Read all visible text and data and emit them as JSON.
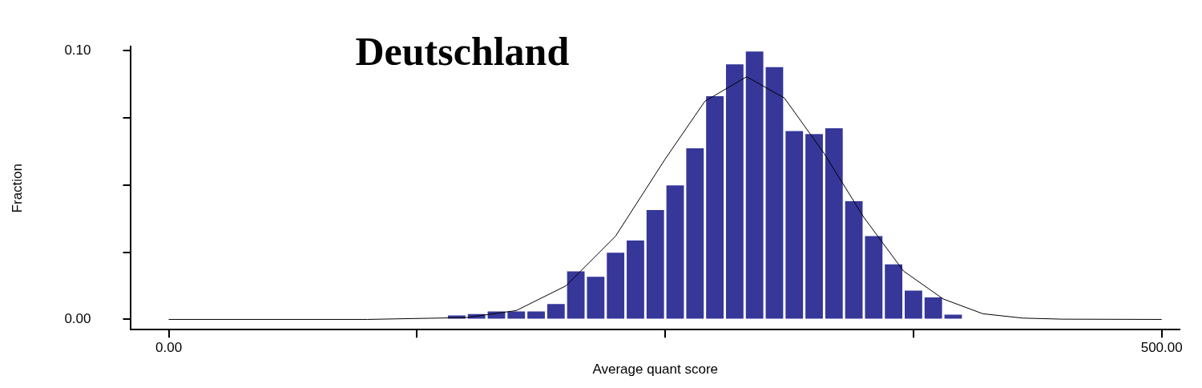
{
  "chart_data": {
    "type": "histogram",
    "title": "Deutschland",
    "xlabel": "Average quant score",
    "ylabel": "Fraction",
    "bins": [
      140,
      150,
      160,
      170,
      180,
      190,
      200,
      210,
      220,
      230,
      240,
      250,
      260,
      270,
      280,
      290,
      300,
      310,
      320,
      330,
      340,
      350,
      360,
      370,
      380,
      390,
      400
    ],
    "values": [
      0.0015,
      0.002,
      0.003,
      0.003,
      0.003,
      0.0057,
      0.0179,
      0.0159,
      0.0248,
      0.0294,
      0.0407,
      0.0499,
      0.0637,
      0.0831,
      0.0949,
      0.0997,
      0.0939,
      0.0701,
      0.069,
      0.0711,
      0.044,
      0.031,
      0.0205,
      0.0107,
      0.0082,
      0.0018
    ],
    "color": "#363799",
    "series": [
      {
        "type": "line",
        "color": "#000000",
        "x": [
          0,
          100,
          150,
          175,
          200,
          225,
          250,
          270,
          291,
          310,
          330,
          350,
          370,
          390,
          410,
          430,
          450,
          500
        ],
        "values": [
          0,
          0,
          0.0007,
          0.0033,
          0.0125,
          0.031,
          0.0597,
          0.0812,
          0.0903,
          0.0824,
          0.0618,
          0.038,
          0.018,
          0.0076,
          0.0021,
          0.0005,
          0.0001,
          0
        ]
      }
    ],
    "xlim": [
      -19,
      509
    ],
    "ylim": [
      -0.0038,
      0.1015
    ],
    "xticks": [
      {
        "value": 0,
        "label": "0.00"
      },
      {
        "value": 125,
        "label": null
      },
      {
        "value": 250,
        "label": null
      },
      {
        "value": 375,
        "label": null
      },
      {
        "value": 500,
        "label": "500.00"
      }
    ],
    "yticks": [
      {
        "value": 0,
        "label": "0.00"
      },
      {
        "value": 0.025,
        "label": null
      },
      {
        "value": 0.05,
        "label": null
      },
      {
        "value": 0.075,
        "label": null
      },
      {
        "value": 0.1,
        "label": "0.10"
      }
    ],
    "grid": false,
    "legend": false,
    "marker": "none",
    "line_style": "solid"
  }
}
